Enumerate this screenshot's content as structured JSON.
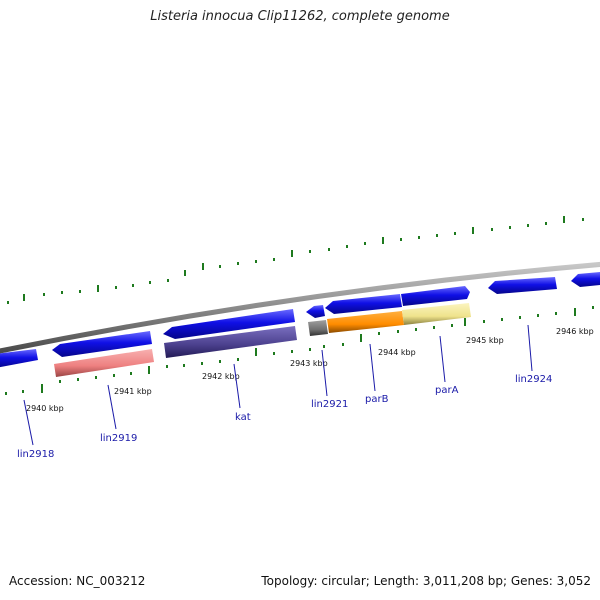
{
  "title": "Listeria innocua Clip11262, complete genome",
  "footer": {
    "accession": "Accession: NC_003212",
    "topology": "Topology: circular; Length: 3,011,208 bp; Genes: 3,052"
  },
  "kbp_labels": [
    "2940 kbp",
    "2941 kbp",
    "2942 kbp",
    "2943 kbp",
    "2944 kbp",
    "2945 kbp",
    "2946 kbp"
  ],
  "gene_labels": [
    "lin2918",
    "lin2919",
    "kat",
    "lin2921",
    "parB",
    "parA",
    "lin2924"
  ],
  "colors": {
    "backbone": "#8a8a8a",
    "cds": "#1010e6",
    "gene_pink": "#f08a8a",
    "gene_kat": "#4a3f8c",
    "gene_gray": "#6e6e6e",
    "gene_parB": "#ff8c00",
    "gene_parA": "#f0e68c",
    "tick_green": "#1e7a1e"
  }
}
